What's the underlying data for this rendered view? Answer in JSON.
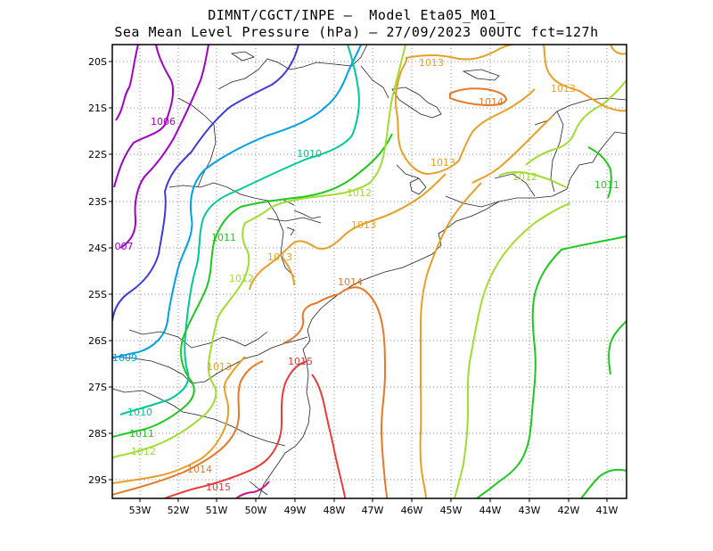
{
  "title_line1": "DIMNT/CGCT/INPE –  Model Eta05_M01_",
  "title_line2": "Sea Mean Level Pressure (hPa) – 27/09/2023 00UTC fct=127h",
  "lat_ticks": [
    "20S",
    "21S",
    "22S",
    "23S",
    "24S",
    "25S",
    "26S",
    "27S",
    "28S",
    "29S"
  ],
  "lon_ticks": [
    "53W",
    "52W",
    "51W",
    "50W",
    "49W",
    "48W",
    "47W",
    "46W",
    "45W",
    "44W",
    "43W",
    "42W",
    "41W"
  ],
  "contour_colors": {
    "1006": "#a000c8",
    "1007": "#a000c8",
    "1008": "#3c3cdc",
    "1009": "#00a0e6",
    "1010": "#00c896",
    "1011": "#1ec81e",
    "1012": "#a0dc32",
    "1013": "#e6a028",
    "1014": "#e67828",
    "1015": "#e63c3c",
    "1016": "#c8148c"
  },
  "contour_labels": [
    {
      "text": "1006",
      "level": "1006"
    },
    {
      "text": "007",
      "level": "1007"
    },
    {
      "text": "1009",
      "level": "1009"
    },
    {
      "text": "1010",
      "level": "1010"
    },
    {
      "text": "1010",
      "level": "1010"
    },
    {
      "text": "1011",
      "level": "1011"
    },
    {
      "text": "1011",
      "level": "1011"
    },
    {
      "text": "1011",
      "level": "1011"
    },
    {
      "text": "1012",
      "level": "1012"
    },
    {
      "text": "1012",
      "level": "1012"
    },
    {
      "text": "1012",
      "level": "1012"
    },
    {
      "text": "1012",
      "level": "1012"
    },
    {
      "text": "1013",
      "level": "1013"
    },
    {
      "text": "1013",
      "level": "1013"
    },
    {
      "text": "1013",
      "level": "1013"
    },
    {
      "text": "1013",
      "level": "1013"
    },
    {
      "text": "1013",
      "level": "1013"
    },
    {
      "text": "1013",
      "level": "1013"
    },
    {
      "text": "1014",
      "level": "1014"
    },
    {
      "text": "1014",
      "level": "1014"
    },
    {
      "text": "1014",
      "level": "1014"
    },
    {
      "text": "1015",
      "level": "1015"
    },
    {
      "text": "1015",
      "level": "1015"
    }
  ]
}
